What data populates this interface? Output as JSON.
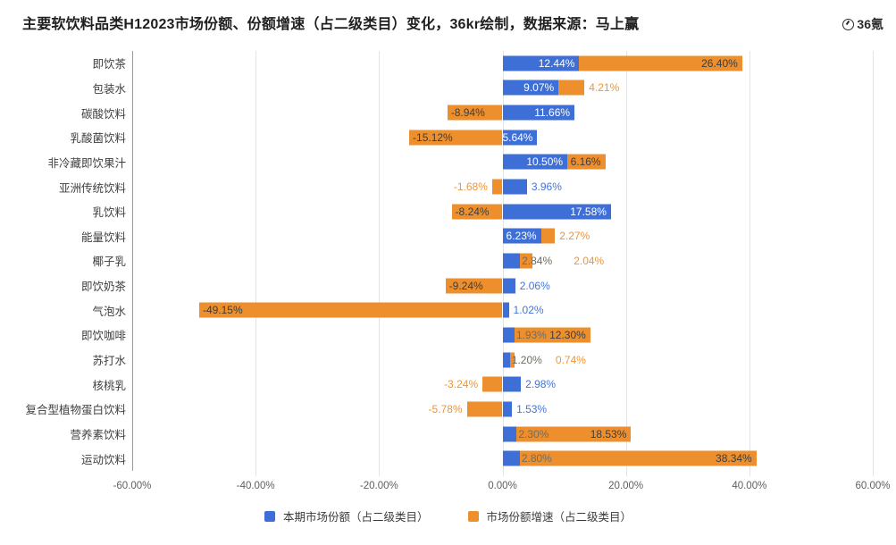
{
  "title": "主要软饮料品类H12023市场份额、份额增速（占二级类目）变化，36kr绘制，数据来源：马上赢",
  "logo": {
    "text": "36氪"
  },
  "colors": {
    "share_blue": "#3E6FD6",
    "growth_orange": "#EE8F2D",
    "label_inside_blue": "#ffffff",
    "label_inside_orange": "#3d3d3d",
    "label_outside_blue": "#4274DB",
    "label_outside_orange": "#EC963B",
    "label_overlap_gray": "#6F6B63",
    "gridline": "#e4e4e4",
    "axis_line": "#9b9b9b",
    "tick_text": "#5f5f5f",
    "category_text": "#3f3f3f"
  },
  "legend": {
    "items": [
      {
        "label": "本期市场份额（占二级类目）",
        "color": "#3E6FD6"
      },
      {
        "label": "市场份额增速（占二级类目）",
        "color": "#EE8F2D"
      }
    ]
  },
  "chart_data": {
    "type": "bar",
    "orientation": "horizontal",
    "stacked": true,
    "grid": true,
    "legend_position": "bottom",
    "title": "主要软饮料品类H12023市场份额、份额增速（占二级类目）变化",
    "xlabel": "",
    "ylabel": "",
    "xlim": [
      -60,
      60
    ],
    "xticks": [
      -60,
      -40,
      -20,
      0,
      20,
      40,
      60
    ],
    "xtick_labels": [
      "-60.00%",
      "-40.00%",
      "-20.00%",
      "0.00%",
      "20.00%",
      "40.00%",
      "60.00%"
    ],
    "categories": [
      "即饮茶",
      "包装水",
      "碳酸饮料",
      "乳酸菌饮料",
      "非冷藏即饮果汁",
      "亚洲传统饮料",
      "乳饮料",
      "能量饮料",
      "椰子乳",
      "即饮奶茶",
      "气泡水",
      "即饮咖啡",
      "苏打水",
      "核桃乳",
      "复合型植物蛋白饮料",
      "营养素饮料",
      "运动饮料"
    ],
    "series": [
      {
        "name": "本期市场份额（占二级类目）",
        "color": "#3E6FD6",
        "values": [
          12.44,
          9.07,
          11.66,
          5.64,
          10.5,
          3.96,
          17.58,
          6.23,
          2.84,
          2.06,
          1.02,
          1.93,
          1.2,
          2.98,
          1.53,
          2.3,
          2.8
        ],
        "labels": [
          "12.44%",
          "9.07%",
          "11.66%",
          "5.64%",
          "10.50%",
          "3.96%",
          "17.58%",
          "6.23%",
          "2.84%",
          "2.06%",
          "1.02%",
          "1.93%",
          "1.20%",
          "2.98%",
          "1.53%",
          "2.30%",
          "2.80%"
        ],
        "label_modes": [
          "inside",
          "inside",
          "inside",
          "inside",
          "inside",
          "outside",
          "inside",
          "inside",
          "overlap",
          "outside",
          "outside",
          "overlap",
          "overlap",
          "outside",
          "outside",
          "overlap",
          "overlap"
        ]
      },
      {
        "name": "市场份额增速（占二级类目）",
        "color": "#EE8F2D",
        "values": [
          26.4,
          4.21,
          -8.94,
          -15.12,
          6.16,
          -1.68,
          -8.24,
          2.27,
          2.04,
          -9.24,
          -49.15,
          12.3,
          0.74,
          -3.24,
          -5.78,
          18.53,
          38.34
        ],
        "labels": [
          "26.40%",
          "4.21%",
          "-8.94%",
          "-15.12%",
          "6.16%",
          "-1.68%",
          "-8.24%",
          "2.27%",
          "2.04%",
          "-9.24%",
          "-49.15%",
          "12.30%",
          "0.74%",
          "-3.24%",
          "-5.78%",
          "18.53%",
          "38.34%"
        ],
        "label_modes": [
          "inside",
          "outside",
          "inside",
          "inside",
          "inside",
          "outside",
          "inside",
          "outside",
          "outside",
          "inside",
          "inside",
          "inside",
          "outside",
          "outside",
          "outside",
          "inside",
          "inside"
        ]
      }
    ]
  }
}
